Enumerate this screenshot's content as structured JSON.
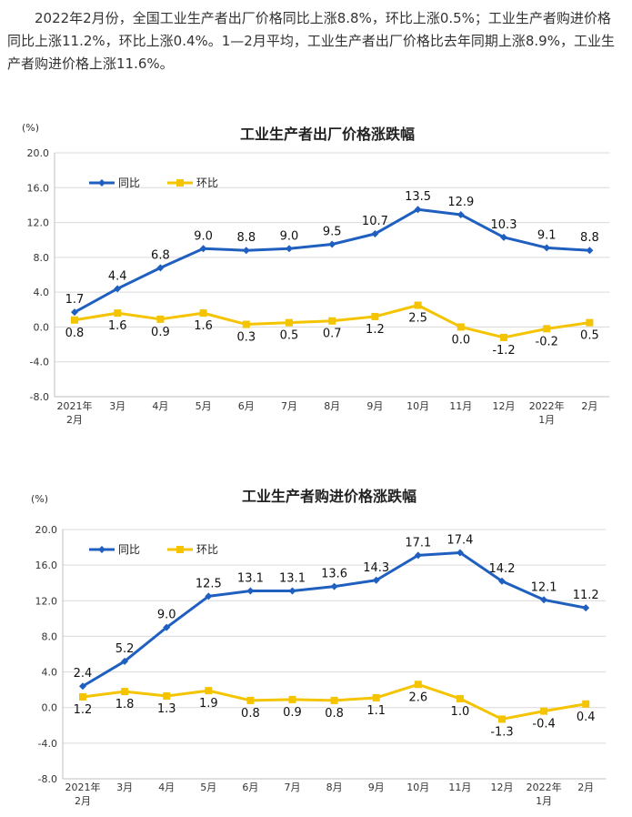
{
  "intro_text": "2022年2月份，全国工业生产者出厂价格同比上涨8.8%，环比上涨0.5%；工业生产者购进价格同比上涨11.2%，环比上涨0.4%。1—2月平均，工业生产者出厂价格比去年同期上涨8.9%，工业生产者购进价格上涨11.6%。",
  "colors": {
    "yoy": "#1f5fbf",
    "mom": "#f5c400",
    "grid": "#d9d9d9"
  },
  "chart_data": [
    {
      "type": "line",
      "title": "工业生产者出厂价格涨跌幅",
      "unit_label": "(%)",
      "categories": [
        "2021年\n2月",
        "3月",
        "4月",
        "5月",
        "6月",
        "7月",
        "8月",
        "9月",
        "10月",
        "11月",
        "12月",
        "2022年\n1月",
        "2月"
      ],
      "ylim": [
        -8.0,
        20.0
      ],
      "yticks": [
        "20.0",
        "16.0",
        "12.0",
        "8.0",
        "4.0",
        "0.0",
        "-4.0",
        "-8.0"
      ],
      "legend_position": "top-left",
      "series": [
        {
          "name": "同比",
          "values": [
            1.7,
            4.4,
            6.8,
            9.0,
            8.8,
            9.0,
            9.5,
            10.7,
            13.5,
            12.9,
            10.3,
            9.1,
            8.8
          ],
          "labels": [
            "1.7",
            "4.4",
            "6.8",
            "9.0",
            "8.8",
            "9.0",
            "9.5",
            "10.7",
            "13.5",
            "12.9",
            "10.3",
            "9.1",
            "8.8"
          ]
        },
        {
          "name": "环比",
          "values": [
            0.8,
            1.6,
            0.9,
            1.6,
            0.3,
            0.5,
            0.7,
            1.2,
            2.5,
            0.0,
            -1.2,
            -0.2,
            0.5
          ],
          "labels": [
            "0.8",
            "1.6",
            "0.9",
            "1.6",
            "0.3",
            "0.5",
            "0.7",
            "1.2",
            "2.5",
            "0.0",
            "-1.2",
            "-0.2",
            "0.5"
          ]
        }
      ]
    },
    {
      "type": "line",
      "title": "工业生产者购进价格涨跌幅",
      "unit_label": "(%)",
      "categories": [
        "2021年\n2月",
        "3月",
        "4月",
        "5月",
        "6月",
        "7月",
        "8月",
        "9月",
        "10月",
        "11月",
        "12月",
        "2022年\n1月",
        "2月"
      ],
      "ylim": [
        -8.0,
        20.0
      ],
      "yticks": [
        "20.0",
        "16.0",
        "12.0",
        "8.0",
        "4.0",
        "0.0",
        "-4.0",
        "-8.0"
      ],
      "legend_position": "top-left",
      "series": [
        {
          "name": "同比",
          "values": [
            2.4,
            5.2,
            9.0,
            12.5,
            13.1,
            13.1,
            13.6,
            14.3,
            17.1,
            17.4,
            14.2,
            12.1,
            11.2
          ],
          "labels": [
            "2.4",
            "5.2",
            "9.0",
            "12.5",
            "13.1",
            "13.1",
            "13.6",
            "14.3",
            "17.1",
            "17.4",
            "14.2",
            "12.1",
            "11.2"
          ]
        },
        {
          "name": "环比",
          "values": [
            1.2,
            1.8,
            1.3,
            1.9,
            0.8,
            0.9,
            0.8,
            1.1,
            2.6,
            1.0,
            -1.3,
            -0.4,
            0.4
          ],
          "labels": [
            "1.2",
            "1.8",
            "1.3",
            "1.9",
            "0.8",
            "0.9",
            "0.8",
            "1.1",
            "2.6",
            "1.0",
            "-1.3",
            "-0.4",
            "0.4"
          ]
        }
      ]
    }
  ]
}
